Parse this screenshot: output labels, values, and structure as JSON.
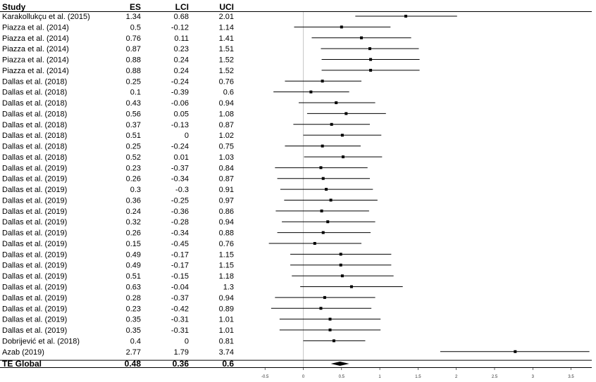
{
  "headers": {
    "study": "Study",
    "es": "ES",
    "lci": "LCI",
    "uci": "UCI"
  },
  "chart_data": {
    "type": "forest",
    "x_ticks": [
      "-0.5",
      "0",
      "0.5",
      "1",
      "1.5",
      "2",
      "2.5",
      "3",
      "3.5"
    ],
    "xlim": [
      -0.5,
      3.7
    ],
    "reference_line": 0,
    "studies": [
      {
        "study": "Karakollukçu et al. (2015)",
        "es": "1.34",
        "lci": "0.68",
        "uci": "2.01"
      },
      {
        "study": "Piazza et al. (2014)",
        "es": "0.5",
        "lci": "-0.12",
        "uci": "1.14"
      },
      {
        "study": "Piazza et al. (2014)",
        "es": "0.76",
        "lci": "0.11",
        "uci": "1.41"
      },
      {
        "study": "Piazza et al. (2014)",
        "es": "0.87",
        "lci": "0.23",
        "uci": "1.51"
      },
      {
        "study": "Piazza et al. (2014)",
        "es": "0.88",
        "lci": "0.24",
        "uci": "1.52"
      },
      {
        "study": "Piazza et al. (2014)",
        "es": "0.88",
        "lci": "0.24",
        "uci": "1.52"
      },
      {
        "study": "Dallas et al. (2018)",
        "es": "0.25",
        "lci": "-0.24",
        "uci": "0.76"
      },
      {
        "study": "Dallas et al. (2018)",
        "es": "0.1",
        "lci": "-0.39",
        "uci": "0.6"
      },
      {
        "study": "Dallas et al. (2018)",
        "es": "0.43",
        "lci": "-0.06",
        "uci": "0.94"
      },
      {
        "study": "Dallas et al. (2018)",
        "es": "0.56",
        "lci": "0.05",
        "uci": "1.08"
      },
      {
        "study": "Dallas et al. (2018)",
        "es": "0.37",
        "lci": "-0.13",
        "uci": "0.87"
      },
      {
        "study": "Dallas et al. (2018)",
        "es": "0.51",
        "lci": "0",
        "uci": "1.02"
      },
      {
        "study": "Dallas et al. (2018)",
        "es": "0.25",
        "lci": "-0.24",
        "uci": "0.75"
      },
      {
        "study": "Dallas et al. (2018)",
        "es": "0.52",
        "lci": "0.01",
        "uci": "1.03"
      },
      {
        "study": "Dallas et al. (2019)",
        "es": "0.23",
        "lci": "-0.37",
        "uci": "0.84"
      },
      {
        "study": "Dallas et al. (2019)",
        "es": "0.26",
        "lci": "-0.34",
        "uci": "0.87"
      },
      {
        "study": "Dallas et al. (2019)",
        "es": "0.3",
        "lci": "-0.3",
        "uci": "0.91"
      },
      {
        "study": "Dallas et al. (2019)",
        "es": "0.36",
        "lci": "-0.25",
        "uci": "0.97"
      },
      {
        "study": "Dallas et al. (2019)",
        "es": "0.24",
        "lci": "-0.36",
        "uci": "0.86"
      },
      {
        "study": "Dallas et al. (2019)",
        "es": "0.32",
        "lci": "-0.28",
        "uci": "0.94"
      },
      {
        "study": "Dallas et al. (2019)",
        "es": "0.26",
        "lci": "-0.34",
        "uci": "0.88"
      },
      {
        "study": "Dallas et al. (2019)",
        "es": "0.15",
        "lci": "-0.45",
        "uci": "0.76"
      },
      {
        "study": "Dallas et al. (2019)",
        "es": "0.49",
        "lci": "-0.17",
        "uci": "1.15"
      },
      {
        "study": "Dallas et al. (2019)",
        "es": "0.49",
        "lci": "-0.17",
        "uci": "1.15"
      },
      {
        "study": "Dallas et al. (2019)",
        "es": "0.51",
        "lci": "-0.15",
        "uci": "1.18"
      },
      {
        "study": "Dallas et al. (2019)",
        "es": "0.63",
        "lci": "-0.04",
        "uci": "1.3"
      },
      {
        "study": "Dallas et al. (2019)",
        "es": "0.28",
        "lci": "-0.37",
        "uci": "0.94"
      },
      {
        "study": "Dallas et al. (2019)",
        "es": "0.23",
        "lci": "-0.42",
        "uci": "0.89"
      },
      {
        "study": "Dallas et al. (2019)",
        "es": "0.35",
        "lci": "-0.31",
        "uci": "1.01"
      },
      {
        "study": "Dallas et al. (2019)",
        "es": "0.35",
        "lci": "-0.31",
        "uci": "1.01"
      },
      {
        "study": "Dobrijević et al. (2018)",
        "es": "0.4",
        "lci": "0",
        "uci": "0.81"
      },
      {
        "study": "Azab (2019)",
        "es": "2.77",
        "lci": "1.79",
        "uci": "3.74"
      }
    ],
    "summary": {
      "study": "TE Global",
      "es": "0.48",
      "lci": "0.36",
      "uci": "0.6"
    }
  },
  "colors": {
    "line": "#000000",
    "reference": "#c8c8c8",
    "tick_text": "#333333"
  }
}
